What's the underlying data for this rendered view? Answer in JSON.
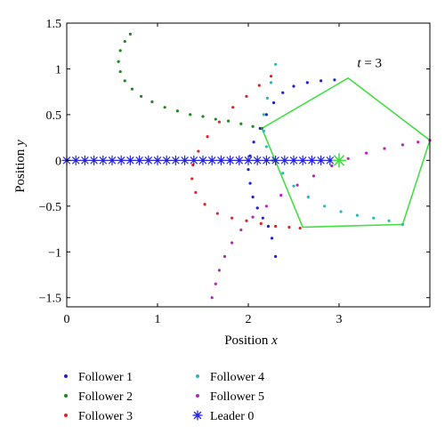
{
  "chart_data": {
    "type": "scatter",
    "xlabel_text": "Position",
    "xlabel_var": "x",
    "ylabel_text": "Position",
    "ylabel_var": "y",
    "xlim": [
      0,
      4
    ],
    "ylim": [
      -1.6,
      1.5
    ],
    "x_ticks": [
      0,
      1,
      2,
      3
    ],
    "x_tick_labels": [
      "0",
      "1",
      "2",
      "3"
    ],
    "y_ticks": [
      1.5,
      1,
      0.5,
      0,
      -0.5,
      -1,
      -1.5
    ],
    "y_tick_labels": [
      "1.5",
      "1",
      "0.5",
      "0",
      "−0.5",
      "−1",
      "−1.5"
    ],
    "grid": false,
    "annotation": {
      "var": "t",
      "text": " = 3",
      "x": 3.2,
      "y": 1.02
    },
    "formation_polygon": {
      "color": "#44dd44",
      "vertices": [
        [
          3.1,
          0.9
        ],
        [
          4.0,
          0.22
        ],
        [
          3.7,
          -0.7
        ],
        [
          2.6,
          -0.73
        ],
        [
          2.15,
          0.35
        ]
      ]
    },
    "series": [
      {
        "name": "Follower 1",
        "color": "#1f1fd0",
        "marker": "dot",
        "points": [
          [
            2.95,
            0.88
          ],
          [
            2.8,
            0.87
          ],
          [
            2.65,
            0.85
          ],
          [
            2.5,
            0.81
          ],
          [
            2.38,
            0.74
          ],
          [
            2.28,
            0.63
          ],
          [
            2.2,
            0.5
          ],
          [
            2.13,
            0.35
          ],
          [
            2.06,
            0.2
          ],
          [
            2.02,
            0.05
          ],
          [
            2.0,
            -0.1
          ],
          [
            2.02,
            -0.25
          ],
          [
            2.05,
            -0.4
          ],
          [
            2.1,
            -0.52
          ],
          [
            2.16,
            -0.63
          ],
          [
            2.22,
            -0.72
          ],
          [
            2.26,
            -0.85
          ],
          [
            2.3,
            -1.05
          ]
        ]
      },
      {
        "name": "Follower 2",
        "color": "#1a8a1a",
        "marker": "dot",
        "points": [
          [
            0.7,
            1.38
          ],
          [
            0.64,
            1.3
          ],
          [
            0.59,
            1.2
          ],
          [
            0.57,
            1.08
          ],
          [
            0.59,
            0.97
          ],
          [
            0.64,
            0.87
          ],
          [
            0.72,
            0.78
          ],
          [
            0.82,
            0.7
          ],
          [
            0.94,
            0.64
          ],
          [
            1.08,
            0.58
          ],
          [
            1.22,
            0.54
          ],
          [
            1.36,
            0.5
          ],
          [
            1.5,
            0.48
          ],
          [
            1.64,
            0.45
          ],
          [
            1.78,
            0.43
          ],
          [
            1.92,
            0.4
          ],
          [
            2.05,
            0.37
          ],
          [
            2.15,
            0.35
          ]
        ]
      },
      {
        "name": "Follower 3",
        "color": "#dd2222",
        "marker": "dot",
        "points": [
          [
            2.25,
            0.92
          ],
          [
            2.12,
            0.82
          ],
          [
            1.98,
            0.7
          ],
          [
            1.83,
            0.58
          ],
          [
            1.68,
            0.42
          ],
          [
            1.55,
            0.26
          ],
          [
            1.45,
            0.1
          ],
          [
            1.39,
            -0.05
          ],
          [
            1.38,
            -0.2
          ],
          [
            1.42,
            -0.35
          ],
          [
            1.52,
            -0.48
          ],
          [
            1.66,
            -0.58
          ],
          [
            1.82,
            -0.63
          ],
          [
            1.98,
            -0.66
          ],
          [
            2.14,
            -0.69
          ],
          [
            2.3,
            -0.72
          ],
          [
            2.45,
            -0.73
          ],
          [
            2.57,
            -0.74
          ]
        ]
      },
      {
        "name": "Follower 4",
        "color": "#22bbbb",
        "marker": "dot",
        "points": [
          [
            2.3,
            1.05
          ],
          [
            2.25,
            0.85
          ],
          [
            2.21,
            0.68
          ],
          [
            2.17,
            0.5
          ],
          [
            2.17,
            0.32
          ],
          [
            2.2,
            0.15
          ],
          [
            2.27,
            0.0
          ],
          [
            2.38,
            -0.14
          ],
          [
            2.5,
            -0.28
          ],
          [
            2.66,
            -0.4
          ],
          [
            2.84,
            -0.5
          ],
          [
            3.02,
            -0.56
          ],
          [
            3.2,
            -0.6
          ],
          [
            3.38,
            -0.63
          ],
          [
            3.55,
            -0.66
          ],
          [
            3.7,
            -0.7
          ]
        ]
      },
      {
        "name": "Follower 5",
        "color": "#bb22bb",
        "marker": "dot",
        "points": [
          [
            1.6,
            -1.5
          ],
          [
            1.64,
            -1.35
          ],
          [
            1.68,
            -1.2
          ],
          [
            1.74,
            -1.05
          ],
          [
            1.82,
            -0.9
          ],
          [
            1.92,
            -0.76
          ],
          [
            2.05,
            -0.62
          ],
          [
            2.2,
            -0.5
          ],
          [
            2.36,
            -0.38
          ],
          [
            2.54,
            -0.27
          ],
          [
            2.72,
            -0.17
          ],
          [
            2.92,
            -0.06
          ],
          [
            3.1,
            0.02
          ],
          [
            3.3,
            0.08
          ],
          [
            3.5,
            0.13
          ],
          [
            3.7,
            0.17
          ],
          [
            3.87,
            0.2
          ],
          [
            4.0,
            0.22
          ]
        ]
      },
      {
        "name": "Leader 0",
        "color": "#2222dd",
        "marker": "star",
        "points": [
          [
            0.0,
            0
          ],
          [
            0.1,
            0
          ],
          [
            0.2,
            0
          ],
          [
            0.3,
            0
          ],
          [
            0.4,
            0
          ],
          [
            0.5,
            0
          ],
          [
            0.6,
            0
          ],
          [
            0.7,
            0
          ],
          [
            0.8,
            0
          ],
          [
            0.9,
            0
          ],
          [
            1.0,
            0
          ],
          [
            1.1,
            0
          ],
          [
            1.2,
            0
          ],
          [
            1.3,
            0
          ],
          [
            1.4,
            0
          ],
          [
            1.5,
            0
          ],
          [
            1.6,
            0
          ],
          [
            1.7,
            0
          ],
          [
            1.8,
            0
          ],
          [
            1.9,
            0
          ],
          [
            2.0,
            0
          ],
          [
            2.1,
            0
          ],
          [
            2.2,
            0
          ],
          [
            2.3,
            0
          ],
          [
            2.4,
            0
          ],
          [
            2.5,
            0
          ],
          [
            2.6,
            0
          ],
          [
            2.7,
            0
          ],
          [
            2.8,
            0
          ],
          [
            2.9,
            0
          ]
        ]
      }
    ],
    "leader_final": {
      "x": 3.0,
      "y": 0,
      "color": "#44dd44"
    },
    "legend": {
      "placement": "bottom",
      "entries": [
        {
          "label": "Follower 1",
          "color": "#1f1fd0",
          "marker": "dot"
        },
        {
          "label": "Follower 4",
          "color": "#22bbbb",
          "marker": "dot"
        },
        {
          "label": "Follower 2",
          "color": "#1a8a1a",
          "marker": "dot"
        },
        {
          "label": "Follower 5",
          "color": "#bb22bb",
          "marker": "dot"
        },
        {
          "label": "Follower 3",
          "color": "#dd2222",
          "marker": "dot"
        },
        {
          "label": "Leader 0",
          "color": "#2222dd",
          "marker": "star"
        }
      ]
    }
  }
}
